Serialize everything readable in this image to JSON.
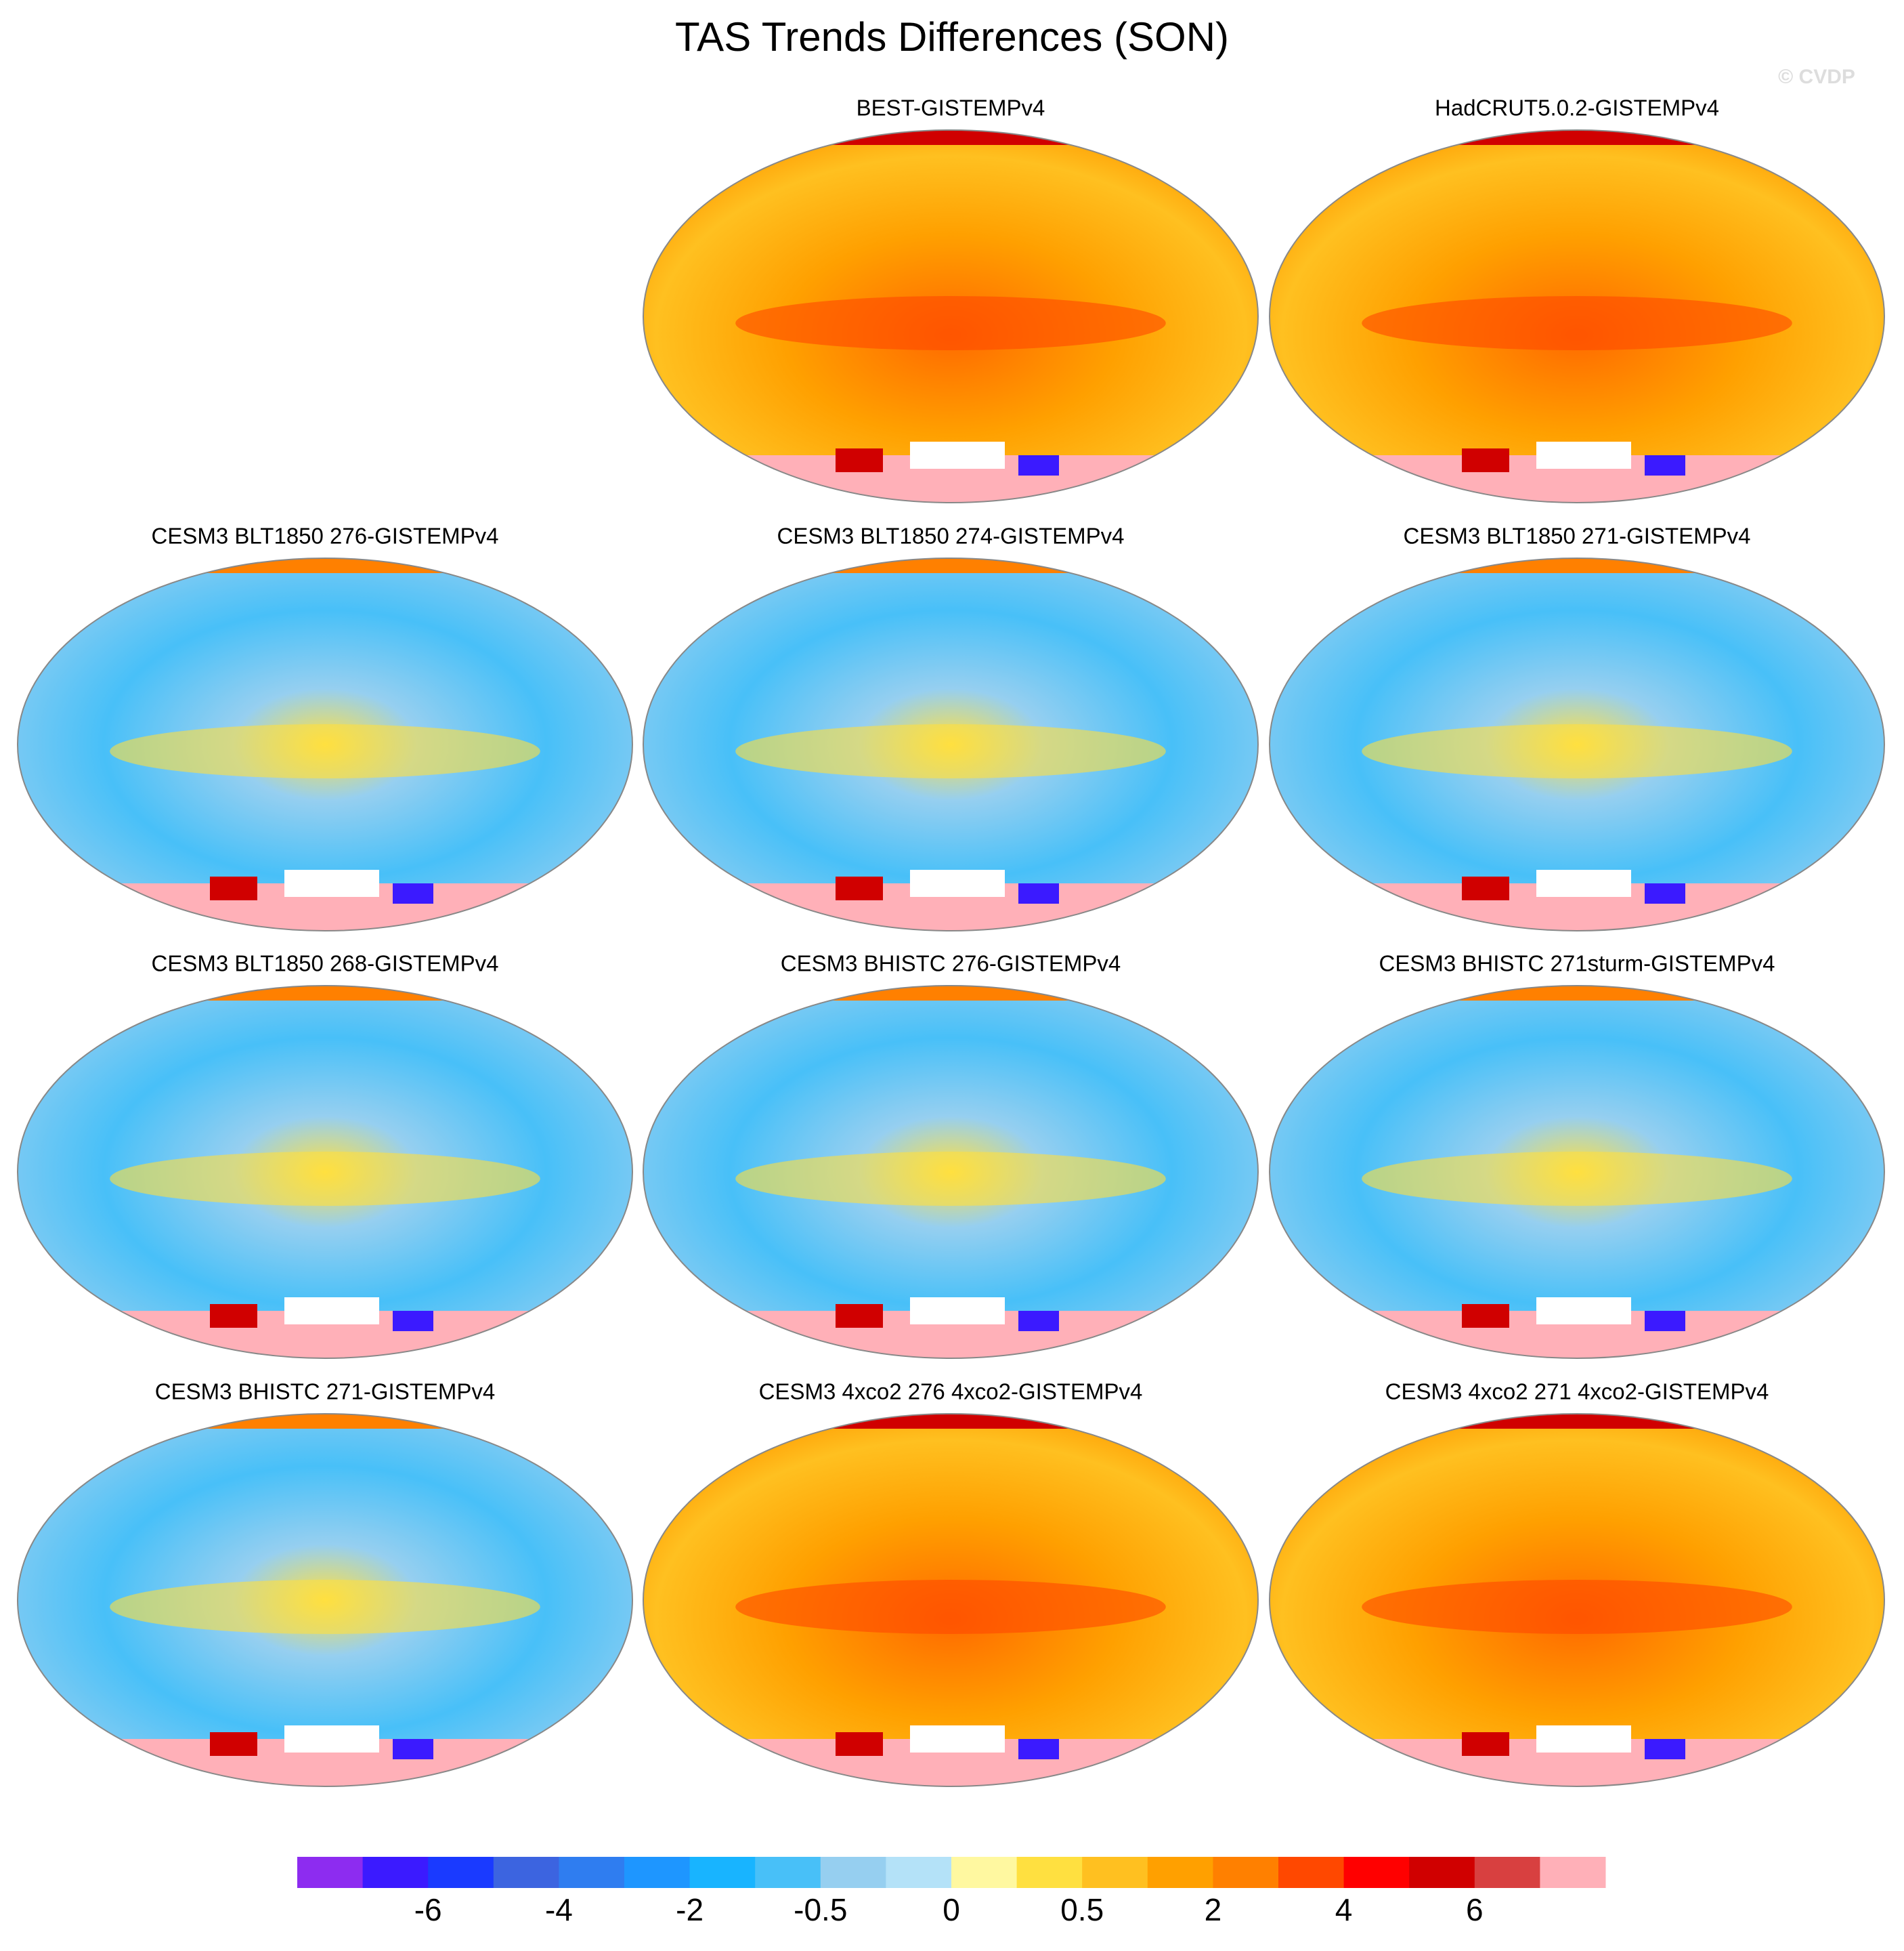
{
  "chart_data": {
    "type": "map-panels",
    "title": "TAS Trends Differences (SON)",
    "watermark": "© CVDP",
    "panels": [
      {
        "title": "BEST-GISTEMPv4"
      },
      {
        "title": "HadCRUT5.0.2-GISTEMPv4"
      },
      {
        "title": "CESM3 BLT1850 276-GISTEMPv4"
      },
      {
        "title": "CESM3 BLT1850 274-GISTEMPv4"
      },
      {
        "title": "CESM3 BLT1850 271-GISTEMPv4"
      },
      {
        "title": "CESM3 BLT1850 268-GISTEMPv4"
      },
      {
        "title": "CESM3 BHISTC 276-GISTEMPv4"
      },
      {
        "title": "CESM3 BHISTC 271sturm-GISTEMPv4"
      },
      {
        "title": "CESM3 BHISTC 271-GISTEMPv4"
      },
      {
        "title": "CESM3 4xco2 276 4xco2-GISTEMPv4"
      },
      {
        "title": "CESM3 4xco2 271 4xco2-GISTEMPv4"
      }
    ],
    "colorbar": {
      "colors": [
        "#8d2cf0",
        "#3b1aff",
        "#1a3aff",
        "#3c64e0",
        "#2f7df0",
        "#1e96ff",
        "#18b4ff",
        "#48c0f8",
        "#96cff0",
        "#b4e2f8",
        "#fff8a0",
        "#ffe040",
        "#ffc020",
        "#ffa000",
        "#ff8000",
        "#ff4800",
        "#ff0000",
        "#d00000",
        "#d84040",
        "#ffb0b8"
      ],
      "ticks": [
        -6,
        -4,
        -2,
        -0.5,
        0,
        0.5,
        2,
        4,
        6
      ]
    }
  }
}
